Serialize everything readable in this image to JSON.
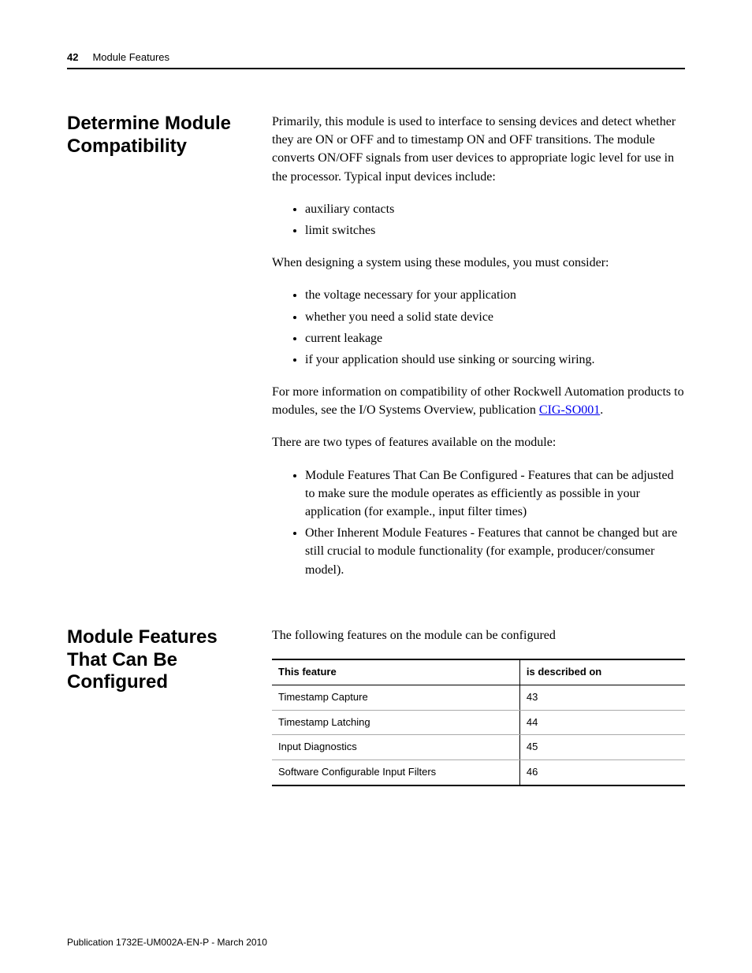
{
  "header": {
    "page_number": "42",
    "chapter": "Module Features"
  },
  "section1": {
    "heading": "Determine Module Compatibility",
    "para1": "Primarily, this module is used to interface to sensing devices and detect whether they are ON or OFF and to timestamp ON and OFF transitions. The module converts ON/OFF signals from user devices to appropriate logic level for use in the processor. Typical input devices include:",
    "list1": [
      "auxiliary contacts",
      "limit switches"
    ],
    "para2": "When designing a system using these modules, you must consider:",
    "list2": [
      "the voltage necessary for your application",
      "whether you need a solid state device",
      "current leakage",
      "if your application should use sinking or sourcing wiring."
    ],
    "para3_pre": "For more information on compatibility of other Rockwell Automation products to modules, see the I/O Systems Overview, publication ",
    "para3_link": "CIG-SO001",
    "para3_post": ".",
    "para4": "There are two types of features available on the module:",
    "list3": [
      "Module Features That Can Be Configured - Features that can be adjusted to make sure the module operates as efficiently as possible in your application (for example., input filter times)",
      "Other Inherent Module Features - Features that cannot be changed but are still crucial to module functionality (for example, producer/consumer model)."
    ]
  },
  "section2": {
    "heading": "Module Features That Can Be Configured",
    "intro": "The following features on the module can be configured",
    "table": {
      "columns": [
        "This feature",
        "is described on"
      ],
      "rows": [
        [
          "Timestamp Capture",
          "43"
        ],
        [
          "Timestamp Latching",
          "44"
        ],
        [
          "Input Diagnostics",
          "45"
        ],
        [
          "Software Configurable Input Filters",
          "46"
        ]
      ]
    }
  },
  "footer": {
    "publication": "Publication 1732E-UM002A-EN-P - March 2010"
  }
}
